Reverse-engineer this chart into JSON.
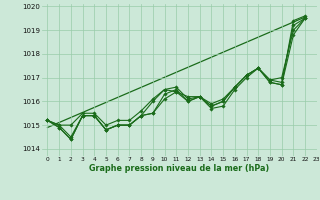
{
  "xlabel": "Graphe pression niveau de la mer (hPa)",
  "ylim": [
    1013.7,
    1020.1
  ],
  "xlim": [
    -0.5,
    23
  ],
  "yticks": [
    1014,
    1015,
    1016,
    1017,
    1018,
    1019,
    1020
  ],
  "xticks": [
    0,
    1,
    2,
    3,
    4,
    5,
    6,
    7,
    8,
    9,
    10,
    11,
    12,
    13,
    14,
    15,
    16,
    17,
    18,
    19,
    20,
    21,
    22,
    23
  ],
  "bg_color": "#cce8d8",
  "grid_color": "#99ccaa",
  "line_color": "#1a6b1a",
  "series": [
    [
      1015.2,
      1014.9,
      1014.4,
      1015.4,
      1015.4,
      1014.8,
      1015.0,
      1015.0,
      1015.4,
      1015.5,
      1016.3,
      1016.5,
      1016.0,
      1016.2,
      1015.8,
      1016.0,
      1016.6,
      1017.1,
      1017.4,
      1016.8,
      1016.7,
      1019.4,
      1019.6
    ],
    [
      1015.2,
      1014.9,
      1014.4,
      1015.4,
      1015.4,
      1014.8,
      1015.0,
      1015.0,
      1015.4,
      1016.0,
      1016.5,
      1016.6,
      1016.1,
      1016.2,
      1015.7,
      1015.8,
      1016.5,
      1017.0,
      1017.4,
      1016.8,
      1016.7,
      1018.8,
      1019.5
    ],
    [
      1015.2,
      1015.0,
      1015.0,
      1015.5,
      1015.5,
      1015.0,
      1015.2,
      1015.2,
      1015.6,
      1016.1,
      1016.5,
      1016.4,
      1016.2,
      1016.2,
      1015.9,
      1016.1,
      1016.6,
      1017.1,
      1017.4,
      1016.9,
      1017.0,
      1019.0,
      1019.5
    ],
    [
      1015.2,
      1015.0,
      1014.5,
      1015.4,
      1015.4,
      1014.8,
      1015.0,
      1015.0,
      1015.4,
      1015.5,
      1016.1,
      1016.4,
      1016.0,
      1016.2,
      1015.8,
      1016.0,
      1016.6,
      1017.1,
      1017.4,
      1016.9,
      1016.8,
      1019.2,
      1019.5
    ]
  ],
  "straight_line": {
    "x": [
      0,
      22
    ],
    "y": [
      1014.9,
      1019.55
    ]
  }
}
